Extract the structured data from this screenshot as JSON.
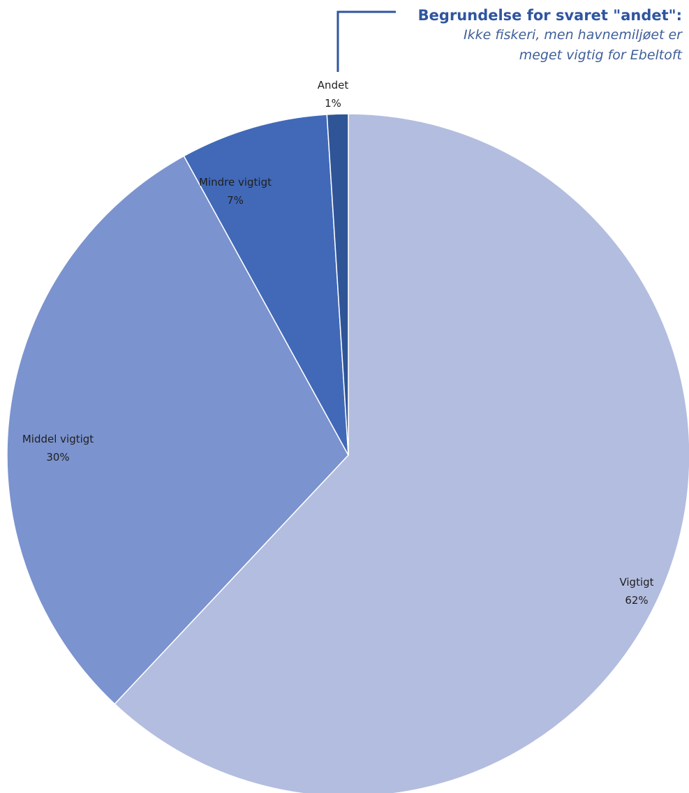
{
  "chart_data": {
    "type": "pie",
    "start_angle_deg": 0,
    "direction": "clockwise",
    "slices": [
      {
        "label": "Vigtigt",
        "value": 62,
        "value_label": "62%",
        "color": "#b3bddf"
      },
      {
        "label": "Middel vigtigt",
        "value": 30,
        "value_label": "30%",
        "color": "#7b93cf"
      },
      {
        "label": "Mindre vigtigt",
        "value": 7,
        "value_label": "7%",
        "color": "#4169b8"
      },
      {
        "label": "Andet",
        "value": 1,
        "value_label": "1%",
        "color": "#2f5597"
      }
    ],
    "annotation": {
      "title": "Begrundelse for svaret \"andet\":",
      "lines": [
        "Ikke fiskeri, men havnemiljøet er",
        "meget vigtig for Ebeltoft"
      ],
      "points_to": "Andet",
      "color": "#2f55a0"
    }
  }
}
